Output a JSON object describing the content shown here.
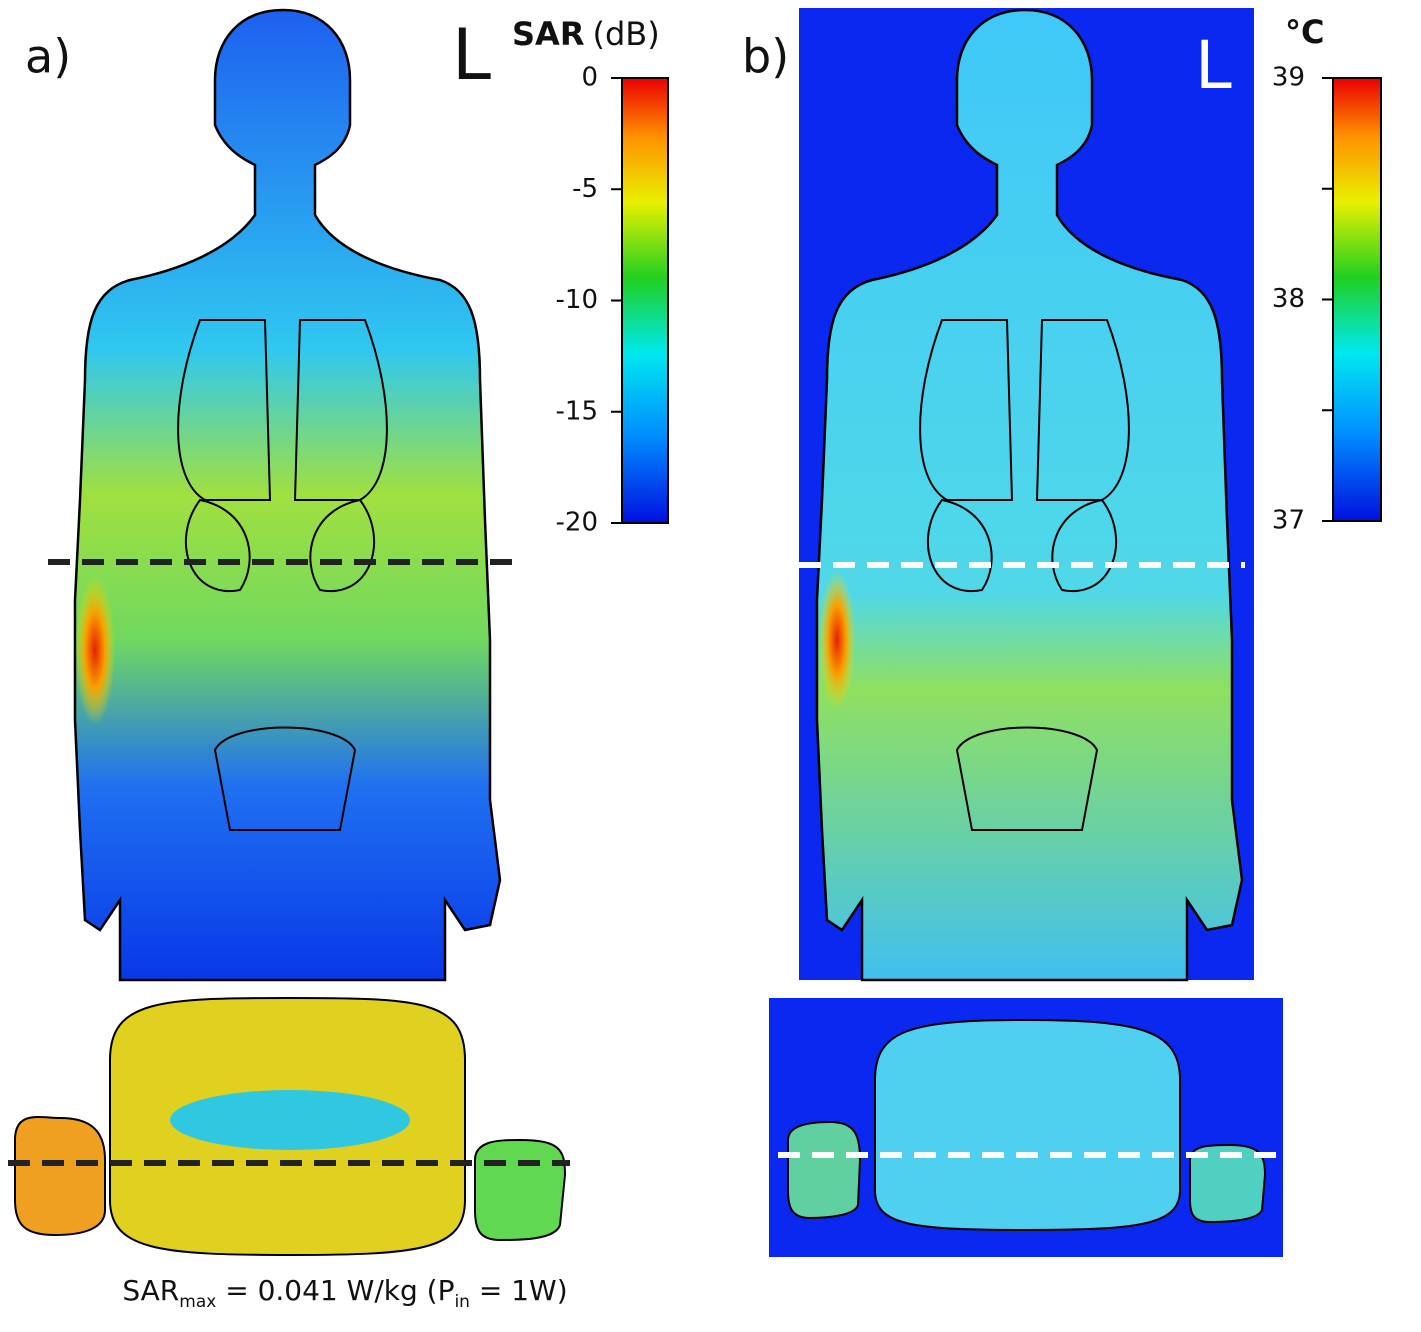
{
  "panel_a": {
    "label": "a)",
    "side_marker": "L",
    "colorbar": {
      "title": "SAR",
      "unit": "(dB)",
      "lim": [
        -20,
        0
      ],
      "ticks": [
        0,
        -5,
        -10,
        -15,
        -20
      ]
    },
    "caption": {
      "lead": "SAR",
      "lead_sub": "max",
      "middle": " = 0.041 W/kg (P",
      "middle_sub": "in",
      "tail": " = 1W)"
    }
  },
  "panel_b": {
    "label": "b)",
    "side_marker": "L",
    "colorbar": {
      "title": "°C",
      "lim": [
        37,
        39
      ],
      "ticks": [
        39,
        38,
        37
      ],
      "minor_ticks": [
        38.5,
        37.5
      ]
    }
  }
}
